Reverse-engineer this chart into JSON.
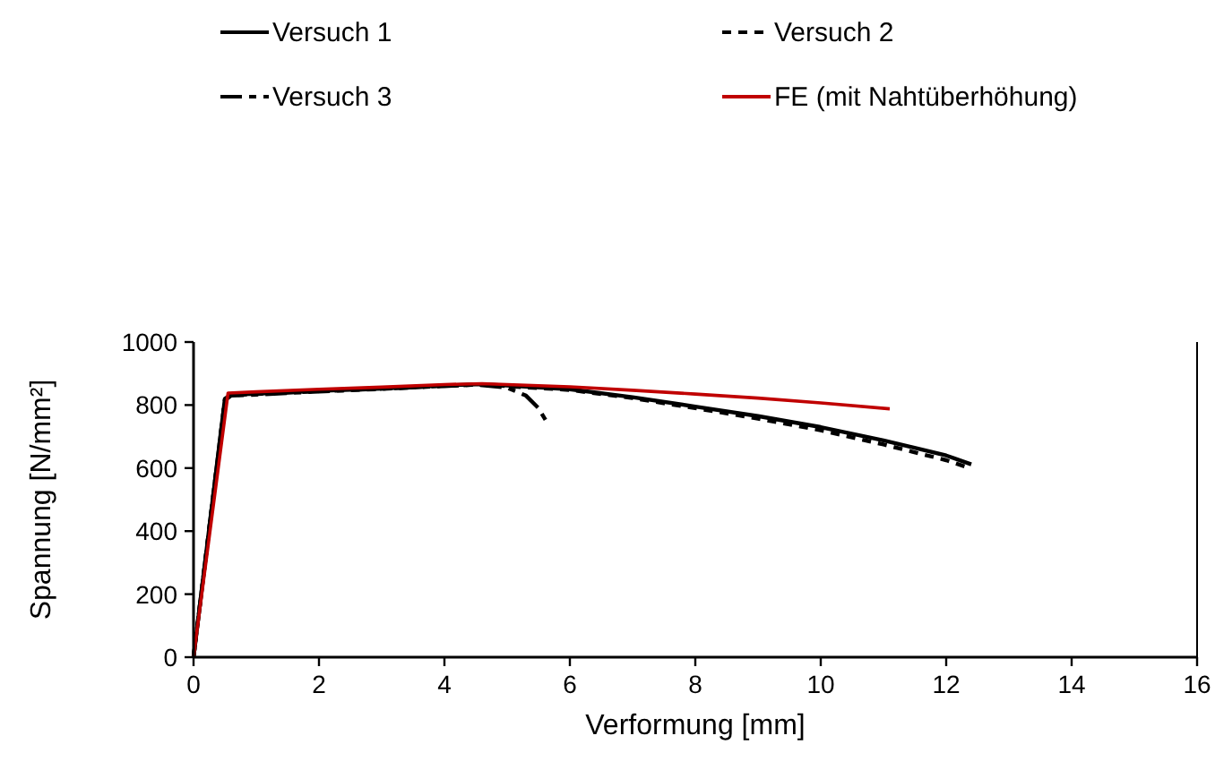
{
  "chart_data": {
    "type": "line",
    "xlabel": "Verformung [mm]",
    "ylabel": "Spannung [N/mm²]",
    "xlim": [
      0,
      16
    ],
    "xticks": [
      0,
      2,
      4,
      6,
      8,
      10,
      12,
      14,
      16
    ],
    "ylim": [
      0,
      1000
    ],
    "yticks": [
      0,
      200,
      400,
      600,
      800,
      1000
    ],
    "legend": "top",
    "grid": false,
    "series": [
      {
        "name": "Versuch 1",
        "color": "#000000",
        "line_style": "solid",
        "x": [
          0,
          0.5,
          0.6,
          1,
          2,
          3,
          4,
          4.6,
          5,
          6,
          7,
          8,
          9,
          10,
          11,
          12,
          12.4
        ],
        "values": [
          0,
          820,
          833,
          836,
          845,
          852,
          862,
          866,
          862,
          850,
          825,
          795,
          765,
          730,
          688,
          640,
          612
        ]
      },
      {
        "name": "Versuch 2",
        "color": "#000000",
        "line_style": "dotted",
        "x": [
          0,
          0.5,
          0.6,
          1,
          2,
          3,
          4,
          4.6,
          5,
          6,
          7,
          8,
          9,
          10,
          11,
          12,
          12.3
        ],
        "values": [
          0,
          818,
          831,
          835,
          844,
          851,
          861,
          865,
          860,
          848,
          822,
          790,
          757,
          720,
          675,
          625,
          605
        ]
      },
      {
        "name": "Versuch 3",
        "color": "#000000",
        "line_style": "dashed",
        "x": [
          0,
          0.5,
          0.6,
          1,
          2,
          3,
          4,
          4.5,
          5,
          5.3,
          5.5,
          5.65
        ],
        "values": [
          0,
          815,
          830,
          833,
          843,
          852,
          860,
          865,
          855,
          830,
          790,
          740
        ]
      },
      {
        "name": "FE (mit Nahtüberhöhung)",
        "color": "#c00000",
        "line_style": "solid",
        "x": [
          0,
          0.55,
          1,
          2,
          3,
          4,
          4.6,
          5,
          6,
          7,
          8,
          9,
          10,
          11.1
        ],
        "values": [
          0,
          838,
          842,
          850,
          857,
          865,
          868,
          865,
          858,
          847,
          835,
          822,
          807,
          788
        ]
      }
    ]
  }
}
